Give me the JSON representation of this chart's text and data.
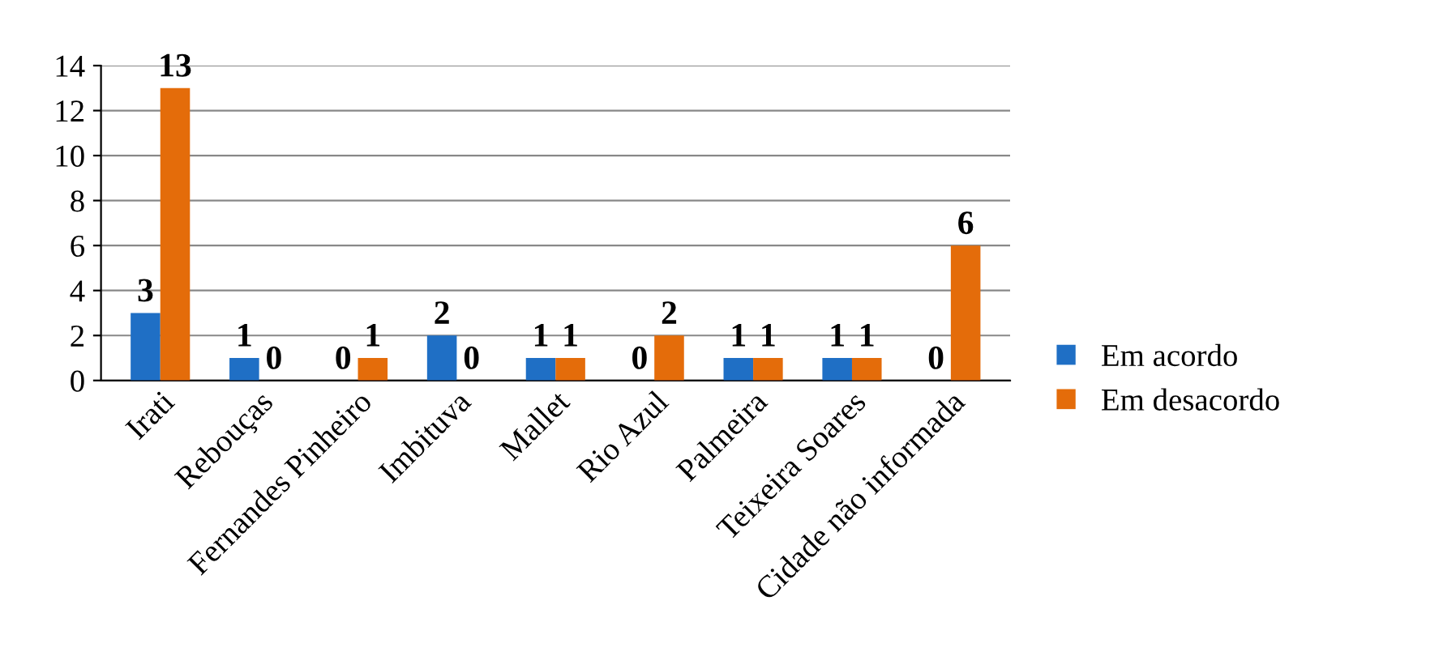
{
  "chart_data": {
    "type": "bar",
    "categories": [
      "Irati",
      "Rebouças",
      "Fernandes Pinheiro",
      "Imbituva",
      "Mallet",
      "Rio Azul",
      "Palmeira",
      "Teixeira Soares",
      "Cidade não informada"
    ],
    "series": [
      {
        "name": "Em acordo",
        "color": "#1f6fc5",
        "values": [
          3,
          1,
          0,
          2,
          1,
          0,
          1,
          1,
          0
        ]
      },
      {
        "name": "Em desacordo",
        "color": "#e46c0a",
        "values": [
          13,
          0,
          1,
          0,
          1,
          2,
          1,
          1,
          6
        ]
      }
    ],
    "ylim": [
      0,
      14
    ],
    "yticks": [
      0,
      2,
      4,
      6,
      8,
      10,
      12,
      14
    ],
    "grid": "y",
    "legend": "right",
    "data_labels": true
  }
}
